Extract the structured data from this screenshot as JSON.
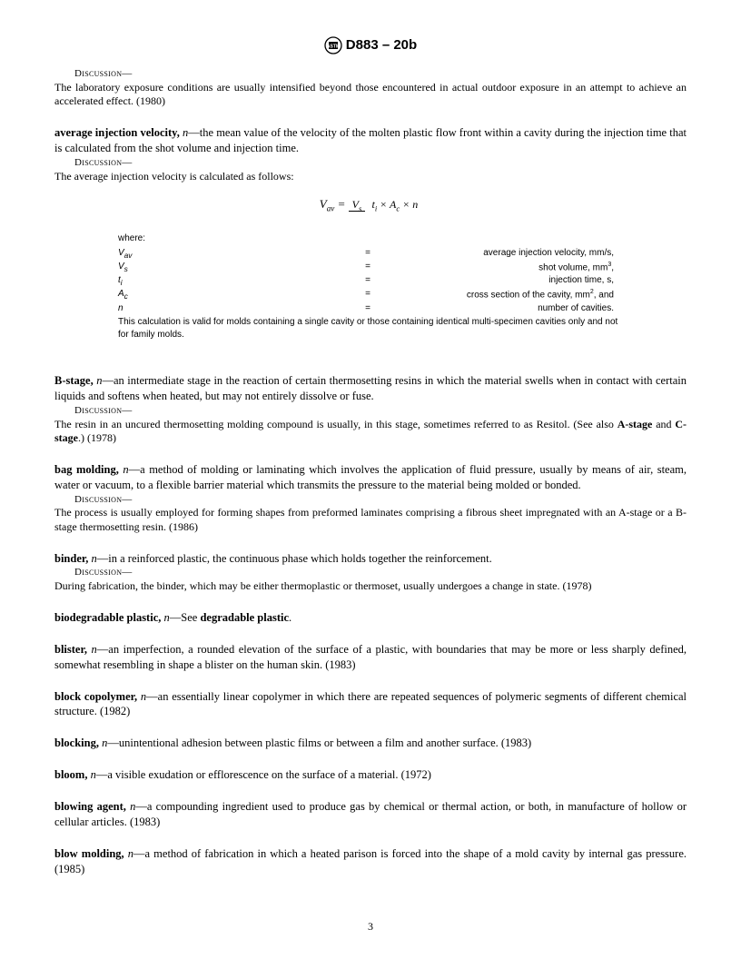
{
  "header": {
    "designation": "D883 – 20b"
  },
  "entry_intro": {
    "discussion_label": "Discussion—",
    "discussion": "The laboratory exposure conditions are usually intensified beyond those encountered in actual outdoor exposure in an attempt to achieve an accelerated effect. (1980)"
  },
  "average_injection_velocity": {
    "term": "average injection velocity,",
    "pos": "n",
    "def": "—the mean value of the velocity of the molten plastic flow front within a cavity during the injection time that is calculated from the shot volume and injection time.",
    "discussion_label": "Discussion—",
    "discussion": "The average injection velocity is calculated as follows:",
    "where_label": "where:",
    "rows": [
      {
        "sym_html": "V<sub>av</sub>",
        "eq": "=",
        "desc": "average injection velocity, mm/s,"
      },
      {
        "sym_html": "V<sub>s</sub>",
        "eq": "=",
        "desc_html": "shot volume, mm<sup>3</sup>,"
      },
      {
        "sym_html": "t<sub>i</sub>",
        "eq": "=",
        "desc": "injection time, s,"
      },
      {
        "sym_html": "A<sub>c</sub>",
        "eq": "=",
        "desc_html": "cross section of the cavity, mm<sup>2</sup>, and"
      },
      {
        "sym_html": "n",
        "eq": "=",
        "desc": "number of cavities."
      }
    ],
    "note": "This calculation is valid for molds containing a single cavity or those containing identical multi-specimen cavities only and not for family molds."
  },
  "b_stage": {
    "term": "B-stage,",
    "pos": "n",
    "def": "—an intermediate stage in the reaction of certain thermosetting resins in which the material swells when in contact with certain liquids and softens when heated, but may not entirely dissolve or fuse.",
    "discussion_label": "Discussion—",
    "discussion_pre": "The resin in an uncured thermosetting molding compound is usually, in this stage, sometimes referred to as Resitol. (See also ",
    "a_stage": "A-stage",
    "and": " and ",
    "c_stage": "C-stage",
    "discussion_post": ".) (1978)"
  },
  "bag_molding": {
    "term": "bag molding,",
    "pos": "n",
    "def": "—a method of molding or laminating which involves the application of fluid pressure, usually by means of air, steam, water or vacuum, to a flexible barrier material which transmits the pressure to the material being molded or bonded.",
    "discussion_label": "Discussion—",
    "discussion": "The process is usually employed for forming shapes from preformed laminates comprising a fibrous sheet impregnated with an A-stage or a B-stage thermosetting resin. (1986)"
  },
  "binder": {
    "term": "binder,",
    "pos": "n",
    "def": "—in a reinforced plastic, the continuous phase which holds together the reinforcement.",
    "discussion_label": "Discussion—",
    "discussion": "During fabrication, the binder, which may be either thermoplastic or thermoset, usually undergoes a change in state. (1978)"
  },
  "biodegradable": {
    "term": "biodegradable plastic,",
    "pos": "n",
    "see": "—See ",
    "target": "degradable plastic",
    "period": "."
  },
  "blister": {
    "term": "blister,",
    "pos": "n",
    "def": "—an imperfection, a rounded elevation of the surface of a plastic, with boundaries that may be more or less sharply defined, somewhat resembling in shape a blister on the human skin. (1983)"
  },
  "block_copolymer": {
    "term": "block copolymer,",
    "pos": "n",
    "def": "—an essentially linear copolymer in which there are repeated sequences of polymeric segments of different chemical structure. (1982)"
  },
  "blocking": {
    "term": "blocking,",
    "pos": "n",
    "def": "—unintentional adhesion between plastic films or between a film and another surface. (1983)"
  },
  "bloom": {
    "term": "bloom,",
    "pos": "n",
    "def": "—a visible exudation or efflorescence on the surface of a material. (1972)"
  },
  "blowing_agent": {
    "term": "blowing agent,",
    "pos": "n",
    "def": "—a compounding ingredient used to produce gas by chemical or thermal action, or both, in manufacture of hollow or cellular articles. (1983)"
  },
  "blow_molding": {
    "term": "blow molding,",
    "pos": "n",
    "def": "—a method of fabrication in which a heated parison is forced into the shape of a mold cavity by internal gas pressure. (1985)"
  },
  "page_number": "3"
}
